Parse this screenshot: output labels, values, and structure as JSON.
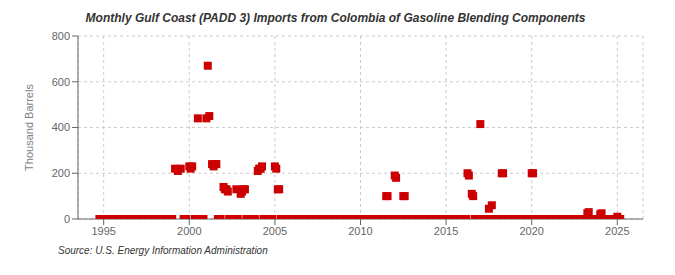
{
  "chart_data": {
    "type": "scatter",
    "title": "Monthly Gulf Coast (PADD 3) Imports from Colombia of Gasoline Blending Components",
    "ylabel": "Thousand Barrels",
    "annotation": "Source: U.S. Energy Information Administration",
    "color": "#cc0000",
    "marker": "square",
    "grid": true,
    "xlim": [
      1993.5,
      2026.5
    ],
    "ylim": [
      0,
      800
    ],
    "xticks": [
      1995,
      2000,
      2005,
      2010,
      2015,
      2020,
      2025
    ],
    "yticks": [
      0,
      200,
      400,
      600,
      800
    ],
    "x": [
      1994.75,
      1995.0,
      1995.08,
      1995.17,
      1995.25,
      1995.33,
      1995.42,
      1995.5,
      1995.58,
      1995.67,
      1995.75,
      1995.83,
      1996.0,
      1996.08,
      1996.17,
      1996.25,
      1996.33,
      1996.42,
      1996.5,
      1996.58,
      1996.67,
      1996.75,
      1996.83,
      1997.0,
      1997.08,
      1997.17,
      1997.25,
      1997.33,
      1997.42,
      1997.5,
      1997.58,
      1997.67,
      1997.75,
      1997.83,
      1998.0,
      1998.08,
      1998.17,
      1998.25,
      1998.33,
      1998.42,
      1998.5,
      1998.58,
      1998.67,
      1998.75,
      1998.83,
      1999.0,
      1999.17,
      1999.33,
      1999.5,
      1999.67,
      1999.75,
      1999.83,
      2000.0,
      2000.08,
      2000.17,
      2000.33,
      2000.5,
      2000.58,
      2000.67,
      2000.75,
      2000.83,
      2001.0,
      2001.08,
      2001.17,
      2001.33,
      2001.42,
      2001.5,
      2001.58,
      2001.67,
      2001.75,
      2001.83,
      2002.0,
      2002.08,
      2002.17,
      2002.25,
      2002.33,
      2002.42,
      2002.5,
      2002.58,
      2002.67,
      2002.75,
      2002.83,
      2003.0,
      2003.08,
      2003.17,
      2003.25,
      2003.33,
      2003.42,
      2003.5,
      2003.58,
      2003.67,
      2003.75,
      2003.83,
      2004.0,
      2004.08,
      2004.17,
      2004.25,
      2004.33,
      2004.42,
      2004.5,
      2004.58,
      2004.67,
      2004.75,
      2004.83,
      2005.0,
      2005.08,
      2005.17,
      2005.25,
      2005.33,
      2005.42,
      2005.5,
      2005.58,
      2005.67,
      2005.75,
      2005.83,
      2006.0,
      2006.08,
      2006.17,
      2006.25,
      2006.33,
      2006.42,
      2006.5,
      2006.58,
      2006.67,
      2006.75,
      2006.83,
      2007.0,
      2007.08,
      2007.17,
      2007.25,
      2007.33,
      2007.42,
      2007.5,
      2007.58,
      2007.67,
      2007.75,
      2007.83,
      2008.0,
      2008.08,
      2008.17,
      2008.25,
      2008.33,
      2008.42,
      2008.5,
      2008.58,
      2008.67,
      2008.75,
      2008.83,
      2009.0,
      2009.08,
      2009.17,
      2009.25,
      2009.33,
      2009.42,
      2009.5,
      2009.58,
      2009.67,
      2009.75,
      2009.83,
      2010.0,
      2010.08,
      2010.17,
      2010.25,
      2010.33,
      2010.42,
      2010.5,
      2010.58,
      2010.67,
      2010.75,
      2010.83,
      2011.0,
      2011.08,
      2011.17,
      2011.25,
      2011.33,
      2011.42,
      2011.5,
      2011.58,
      2011.67,
      2011.75,
      2011.83,
      2012.0,
      2012.08,
      2012.17,
      2012.25,
      2012.33,
      2012.42,
      2012.5,
      2012.58,
      2012.67,
      2012.75,
      2012.83,
      2013.0,
      2013.08,
      2013.17,
      2013.25,
      2013.33,
      2013.42,
      2013.5,
      2013.58,
      2013.67,
      2013.75,
      2013.83,
      2014.0,
      2014.08,
      2014.17,
      2014.25,
      2014.33,
      2014.42,
      2014.5,
      2014.58,
      2014.67,
      2014.75,
      2014.83,
      2015.0,
      2015.08,
      2015.17,
      2015.25,
      2015.33,
      2015.42,
      2015.5,
      2015.58,
      2015.67,
      2015.75,
      2015.83,
      2016.0,
      2016.08,
      2016.17,
      2016.25,
      2016.33,
      2016.5,
      2016.58,
      2016.67,
      2016.75,
      2016.83,
      2017.0,
      2017.08,
      2017.17,
      2017.25,
      2017.33,
      2017.5,
      2017.67,
      2017.75,
      2017.83,
      2018.0,
      2018.08,
      2018.17,
      2018.25,
      2018.33,
      2018.5,
      2018.58,
      2018.67,
      2018.75,
      2018.83,
      2019.0,
      2019.08,
      2019.17,
      2019.25,
      2019.33,
      2019.42,
      2019.5,
      2019.58,
      2019.67,
      2019.75,
      2019.83,
      2020.0,
      2020.08,
      2020.17,
      2020.25,
      2020.33,
      2020.42,
      2020.5,
      2020.58,
      2020.67,
      2020.75,
      2020.83,
      2021.0,
      2021.08,
      2021.17,
      2021.25,
      2021.33,
      2021.42,
      2021.5,
      2021.58,
      2021.67,
      2021.75,
      2021.83,
      2022.0,
      2022.08,
      2022.17,
      2022.25,
      2022.33,
      2022.42,
      2022.5,
      2022.58,
      2022.67,
      2022.75,
      2022.83,
      2023.0,
      2023.08,
      2023.17,
      2023.25,
      2023.33,
      2023.5,
      2023.58,
      2023.67,
      2023.75,
      2023.83,
      2024.0,
      2024.08,
      2024.17,
      2024.25,
      2024.33,
      2024.42,
      2024.5,
      2024.58,
      2024.67,
      2024.75,
      2024.83,
      2025.0,
      2025.08,
      2025.17
    ],
    "values": [
      0,
      0,
      0,
      0,
      0,
      0,
      0,
      0,
      0,
      0,
      0,
      0,
      0,
      0,
      0,
      0,
      0,
      0,
      0,
      0,
      0,
      0,
      0,
      0,
      0,
      0,
      0,
      0,
      0,
      0,
      0,
      0,
      0,
      0,
      0,
      0,
      0,
      0,
      0,
      0,
      0,
      0,
      0,
      0,
      0,
      0,
      220,
      210,
      220,
      0,
      0,
      0,
      230,
      220,
      230,
      0,
      440,
      0,
      0,
      0,
      0,
      440,
      670,
      450,
      240,
      230,
      240,
      240,
      0,
      0,
      0,
      140,
      130,
      130,
      120,
      0,
      0,
      0,
      0,
      0,
      130,
      0,
      110,
      120,
      130,
      130,
      0,
      0,
      0,
      0,
      0,
      0,
      0,
      210,
      220,
      220,
      230,
      0,
      0,
      0,
      0,
      0,
      0,
      0,
      230,
      220,
      130,
      130,
      0,
      0,
      0,
      0,
      0,
      0,
      0,
      0,
      0,
      0,
      0,
      0,
      0,
      0,
      0,
      0,
      0,
      0,
      0,
      0,
      0,
      0,
      0,
      0,
      0,
      0,
      0,
      0,
      0,
      0,
      0,
      0,
      0,
      0,
      0,
      0,
      0,
      0,
      0,
      0,
      0,
      0,
      0,
      0,
      0,
      0,
      0,
      0,
      0,
      0,
      0,
      0,
      0,
      0,
      0,
      0,
      0,
      0,
      0,
      0,
      0,
      0,
      0,
      0,
      0,
      0,
      0,
      0,
      100,
      100,
      0,
      0,
      0,
      190,
      180,
      0,
      0,
      0,
      0,
      100,
      100,
      0,
      0,
      0,
      0,
      0,
      0,
      0,
      0,
      0,
      0,
      0,
      0,
      0,
      0,
      0,
      0,
      0,
      0,
      0,
      0,
      0,
      0,
      0,
      0,
      0,
      0,
      0,
      0,
      0,
      0,
      0,
      0,
      0,
      0,
      0,
      0,
      0,
      0,
      0,
      200,
      190,
      110,
      100,
      0,
      0,
      0,
      415,
      0,
      0,
      0,
      0,
      45,
      60,
      0,
      0,
      0,
      0,
      0,
      200,
      200,
      0,
      0,
      0,
      0,
      0,
      0,
      0,
      0,
      0,
      0,
      0,
      0,
      0,
      0,
      0,
      0,
      200,
      200,
      0,
      0,
      0,
      0,
      0,
      0,
      0,
      0,
      0,
      0,
      0,
      0,
      0,
      0,
      0,
      0,
      0,
      0,
      0,
      0,
      0,
      0,
      0,
      0,
      0,
      0,
      0,
      0,
      0,
      0,
      0,
      0,
      0,
      0,
      25,
      30,
      0,
      0,
      0,
      0,
      0,
      20,
      25,
      0,
      0,
      0,
      0,
      0,
      0,
      0,
      0,
      0,
      10,
      0,
      0
    ]
  }
}
